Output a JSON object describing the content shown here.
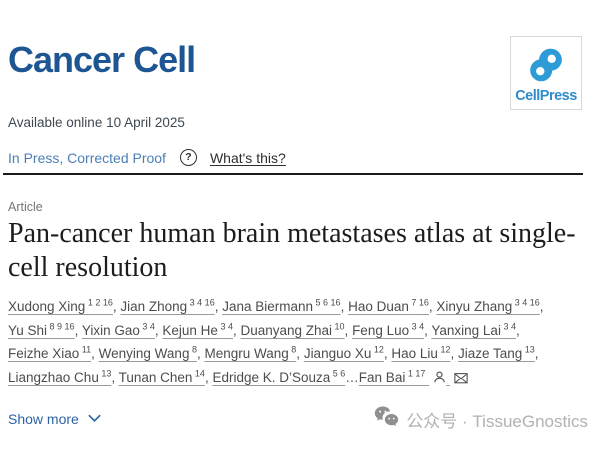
{
  "header": {
    "journal_name": "Cancer Cell",
    "publisher": "CellPress",
    "brand_color": "#1d5693",
    "logo_blue": "#2d9cd6"
  },
  "meta": {
    "available_online": "Available online 10 April 2025",
    "status": "In Press, Corrected Proof",
    "help_icon_glyph": "?",
    "whats_this": "What's this?"
  },
  "article": {
    "type_label": "Article",
    "title": "Pan-cancer human brain metastases atlas at single-cell resolution"
  },
  "authors": {
    "list": [
      {
        "name": "Xudong Xing",
        "sup": "1 2 16",
        "sep": ", "
      },
      {
        "name": "Jian Zhong",
        "sup": "3 4 16",
        "sep": ", "
      },
      {
        "name": "Jana Biermann",
        "sup": "5 6 16",
        "sep": ", "
      },
      {
        "name": "Hao Duan",
        "sup": "7 16",
        "sep": ", "
      },
      {
        "name": "Xinyu Zhang",
        "sup": "3 4 16",
        "sep": ", "
      },
      {
        "name": "Yu Shi",
        "sup": "8 9 16",
        "sep": ", "
      },
      {
        "name": "Yixin Gao",
        "sup": "3 4",
        "sep": ", "
      },
      {
        "name": "Kejun He",
        "sup": "3 4",
        "sep": ", "
      },
      {
        "name": "Duanyang Zhai",
        "sup": "10",
        "sep": ", "
      },
      {
        "name": "Feng Luo",
        "sup": "3 4",
        "sep": ", "
      },
      {
        "name": "Yanxing Lai",
        "sup": "3 4",
        "sep": ", "
      },
      {
        "name": "Feizhe Xiao",
        "sup": "11",
        "sep": ", "
      },
      {
        "name": "Wenying Wang",
        "sup": "8",
        "sep": ", "
      },
      {
        "name": "Mengru Wang",
        "sup": "8",
        "sep": ", "
      },
      {
        "name": "Jianguo Xu",
        "sup": "12",
        "sep": ", "
      },
      {
        "name": "Hao Liu",
        "sup": "12",
        "sep": ", "
      },
      {
        "name": "Jiaze Tang",
        "sup": "13",
        "sep": ", "
      },
      {
        "name": "Liangzhao Chu",
        "sup": "13",
        "sep": ", "
      },
      {
        "name": "Tunan Chen",
        "sup": "14",
        "sep": ", "
      },
      {
        "name": "Edridge K. D’Souza",
        "sup": "5 6",
        "sep": "…"
      },
      {
        "name": "Fan Bai",
        "sup": "1 17",
        "sep": "",
        "icons": true
      }
    ],
    "trailing_icons": [
      "author-profile-icon",
      "email-icon"
    ]
  },
  "show_more": {
    "label": "Show more",
    "icon": "chevron-down-icon"
  },
  "watermark": {
    "icon": "wechat-icon",
    "text": "公众号 · TissueGnostics"
  }
}
